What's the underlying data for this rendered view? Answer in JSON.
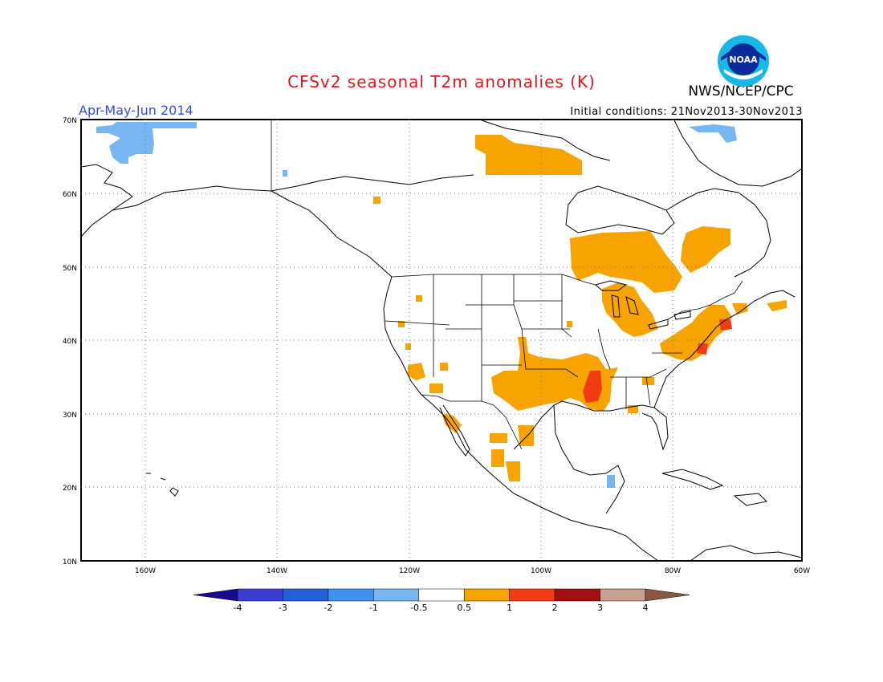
{
  "title": "CFSv2 seasonal T2m anomalies (K)",
  "agency": "NWS/NCEP/CPC",
  "logo_text": "NOAA",
  "period": "Apr-May-Jun 2014",
  "initial_conditions": "Initial conditions: 21Nov2013-30Nov2013",
  "colors": {
    "title": "#e8141a",
    "period": "#3050e0",
    "warm_0_5_to_1": "#f7a400",
    "warm_1_to_2": "#f03010",
    "cool_neg1_to_neg0_5": "#7ab4f0"
  },
  "map": {
    "lon_labels": [
      "160W",
      "140W",
      "120W",
      "100W",
      "80W",
      "60W"
    ],
    "lat_labels": [
      "70N",
      "60N",
      "50N",
      "40N",
      "30N",
      "20N",
      "10N"
    ]
  },
  "colorbar": {
    "labels": [
      "-4",
      "-3",
      "-2",
      "-1",
      "-0.5",
      "0.5",
      "1",
      "2",
      "3",
      "4"
    ],
    "colors": [
      "#1a0a8c",
      "#3c3cd2",
      "#2060d8",
      "#4090ee",
      "#78b6f2",
      "#ffffff",
      "#f7a400",
      "#f03c10",
      "#a01010",
      "#c8a090",
      "#8a5840"
    ]
  }
}
